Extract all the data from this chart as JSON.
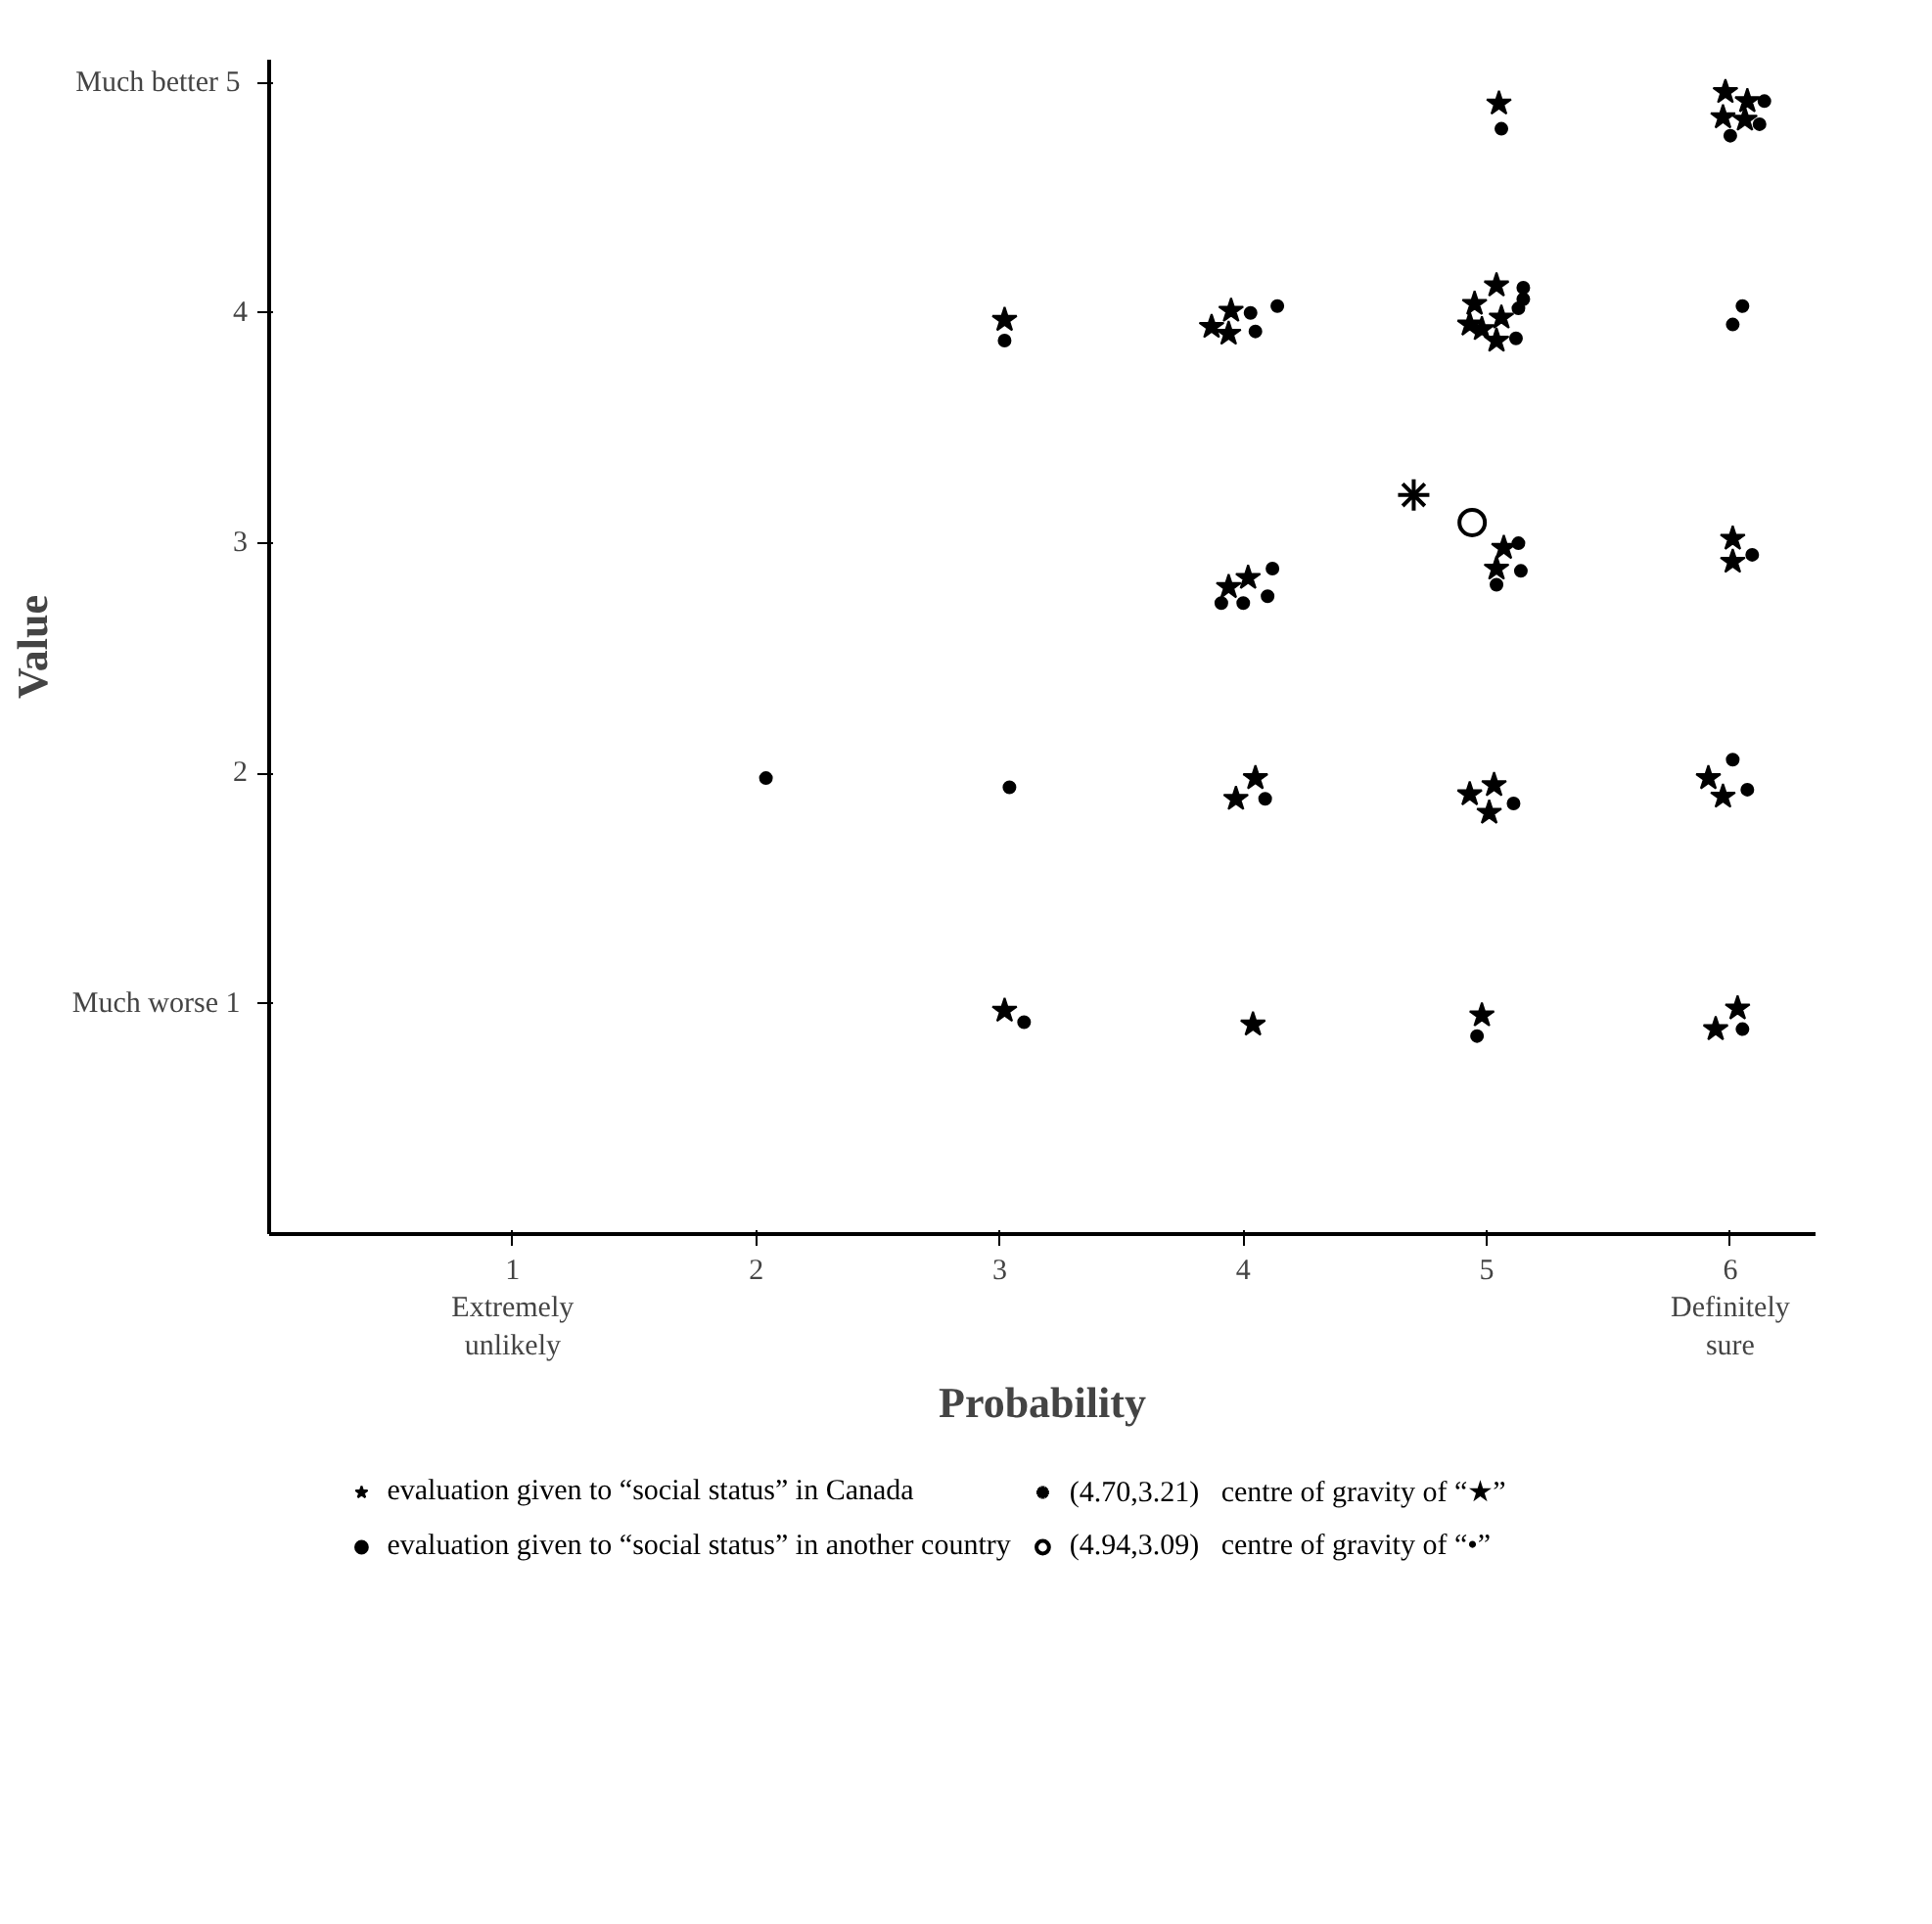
{
  "chart_data": {
    "type": "scatter",
    "xlabel": "Probability",
    "ylabel": "Value",
    "xlim": [
      0,
      6.35
    ],
    "ylim": [
      0,
      5.1
    ],
    "xticks": [
      {
        "value": 1,
        "label": "1\nExtremely\nunlikely"
      },
      2,
      3,
      4,
      5,
      {
        "value": 6,
        "label": "6\nDefinitely\nsure"
      }
    ],
    "yticks": [
      {
        "value": 1,
        "label": "Much worse  1"
      },
      2,
      3,
      4,
      {
        "value": 5,
        "label": "Much better  5"
      }
    ],
    "grid": false,
    "legend": "bottom",
    "series": [
      {
        "name": "evaluation given to “social status” in Canada",
        "color": "#000000",
        "marker": "star",
        "x": [
          3.02,
          3.87,
          3.95,
          3.94,
          5.05,
          5.98,
          6.07,
          5.97,
          6.06,
          5.04,
          4.95,
          5.06,
          4.93,
          4.98,
          5.04,
          3.94,
          4.02,
          5.07,
          5.04,
          6.01,
          6.01,
          4.05,
          3.97,
          4.93,
          5.03,
          5.01,
          5.91,
          5.97,
          3.02,
          4.04,
          4.98,
          5.94,
          6.03
        ],
        "values": [
          3.97,
          3.94,
          4.01,
          3.91,
          4.91,
          4.96,
          4.92,
          4.85,
          4.84,
          4.12,
          4.04,
          3.98,
          3.95,
          3.93,
          3.88,
          2.81,
          2.85,
          2.98,
          2.89,
          3.02,
          2.92,
          1.98,
          1.89,
          1.91,
          1.95,
          1.83,
          1.98,
          1.9,
          0.97,
          0.91,
          0.95,
          0.89,
          0.98
        ]
      },
      {
        "name": "evaluation given to “social status” in another country",
        "color": "#000000",
        "marker": "circle",
        "x": [
          3.02,
          4.03,
          4.05,
          4.14,
          5.06,
          6.14,
          6.12,
          6.0,
          5.15,
          5.15,
          5.13,
          5.12,
          6.05,
          6.01,
          4.12,
          3.91,
          4.0,
          4.1,
          5.13,
          5.14,
          5.04,
          6.09,
          3.04,
          2.04,
          4.09,
          5.11,
          6.01,
          6.07,
          3.1,
          4.96,
          6.05
        ],
        "values": [
          3.88,
          4.0,
          3.92,
          4.03,
          4.8,
          4.92,
          4.82,
          4.77,
          4.11,
          4.06,
          4.02,
          3.89,
          4.03,
          3.95,
          2.89,
          2.74,
          2.74,
          2.77,
          3.0,
          2.88,
          2.82,
          2.95,
          1.94,
          1.98,
          1.89,
          1.87,
          2.06,
          1.93,
          0.92,
          0.86,
          0.89
        ]
      },
      {
        "name": "(4.70,3.21)   centre of gravity of “★”",
        "color": "#000000",
        "marker": "cross",
        "x": [
          4.7
        ],
        "values": [
          3.21
        ]
      },
      {
        "name": "(4.94,3.09)   centre of gravity of “•”",
        "color": "#000000",
        "marker": "circle_open",
        "x": [
          4.94
        ],
        "values": [
          3.09
        ]
      }
    ]
  }
}
